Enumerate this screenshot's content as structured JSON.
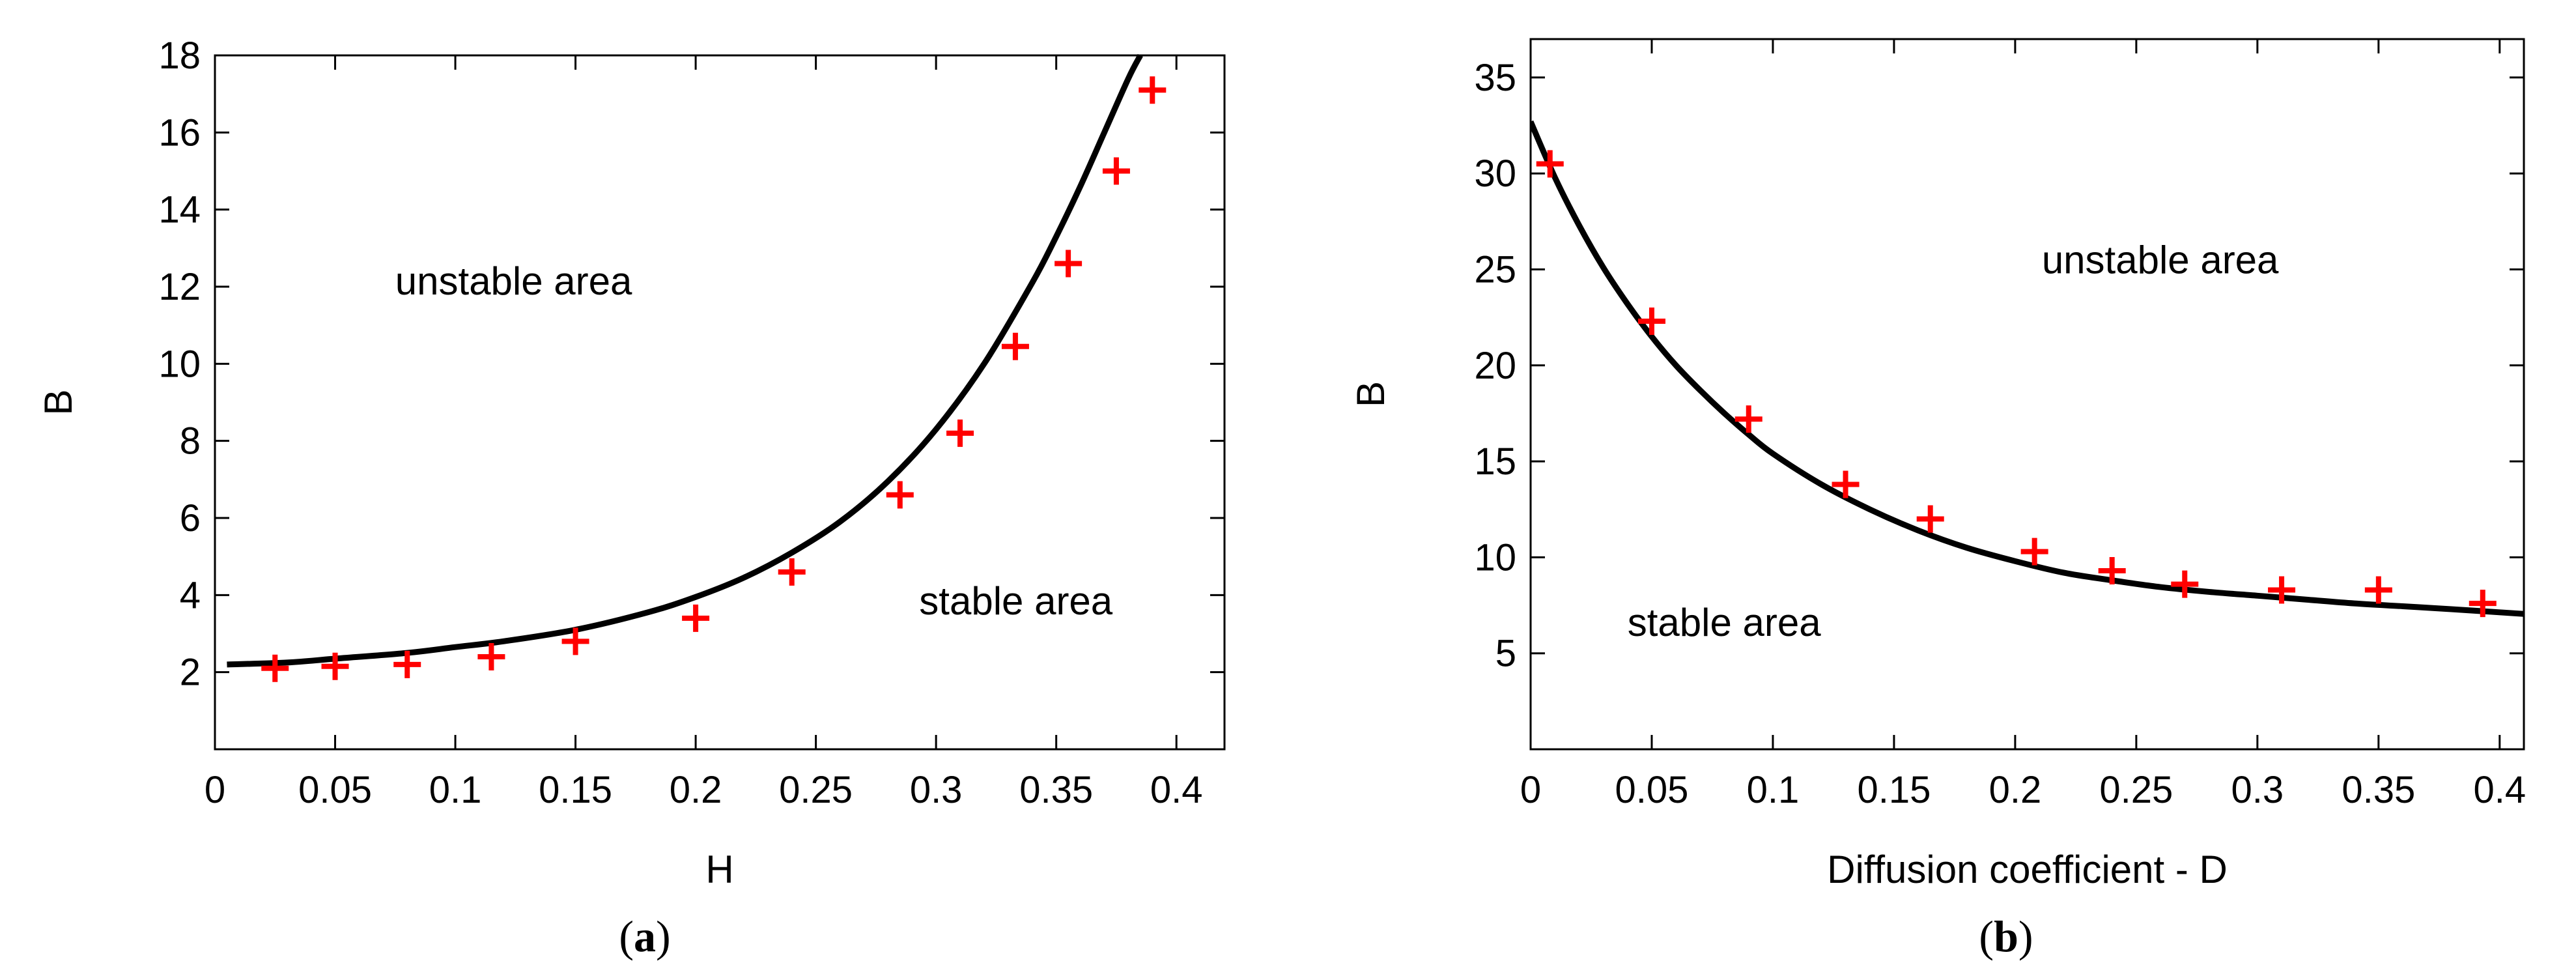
{
  "colors": {
    "curve": "#000000",
    "marker": "#ff0000",
    "axis": "#000000"
  },
  "chart_data": [
    {
      "type": "line",
      "panel": "a",
      "caption_letter": "a",
      "xlabel": "H",
      "ylabel": "B",
      "xlim": [
        0,
        0.42
      ],
      "ylim": [
        0,
        18
      ],
      "xticks": [
        0,
        0.05,
        0.1,
        0.15,
        0.2,
        0.25,
        0.3,
        0.35,
        0.4
      ],
      "xtick_labels": [
        "0",
        "0.05",
        "0.1",
        "0.15",
        "0.2",
        "0.25",
        "0.3",
        "0.35",
        "0.4"
      ],
      "yticks": [
        2,
        4,
        6,
        8,
        10,
        12,
        14,
        16,
        18
      ],
      "ytick_labels": [
        "2",
        "4",
        "6",
        "8",
        "10",
        "12",
        "14",
        "16",
        "18"
      ],
      "grid": false,
      "annotations": [
        {
          "text": "unstable area",
          "x": 0.075,
          "y": 11.8
        },
        {
          "text": "stable area",
          "x": 0.293,
          "y": 3.5
        }
      ],
      "series": [
        {
          "kind": "line",
          "x": [
            0.005,
            0.03,
            0.05,
            0.08,
            0.1,
            0.12,
            0.15,
            0.18,
            0.2,
            0.22,
            0.24,
            0.26,
            0.28,
            0.3,
            0.32,
            0.34,
            0.35,
            0.36,
            0.37,
            0.38,
            0.385
          ],
          "y": [
            2.2,
            2.25,
            2.35,
            2.5,
            2.65,
            2.8,
            3.1,
            3.55,
            3.95,
            4.45,
            5.1,
            5.9,
            6.95,
            8.3,
            10.0,
            12.1,
            13.3,
            14.6,
            16.0,
            17.4,
            18.0
          ]
        },
        {
          "kind": "scatter",
          "marker": "+",
          "x": [
            0.025,
            0.05,
            0.08,
            0.115,
            0.15,
            0.2,
            0.24,
            0.285,
            0.31,
            0.333,
            0.355,
            0.375,
            0.39
          ],
          "y": [
            2.1,
            2.15,
            2.2,
            2.4,
            2.8,
            3.4,
            4.6,
            6.6,
            8.2,
            10.45,
            12.6,
            15.0,
            17.1
          ]
        }
      ]
    },
    {
      "type": "line",
      "panel": "b",
      "caption_letter": "b",
      "xlabel": "Diffusion coefficient - D",
      "ylabel": "B",
      "xlim": [
        0,
        0.41
      ],
      "ylim": [
        0,
        37
      ],
      "xticks": [
        0,
        0.05,
        0.1,
        0.15,
        0.2,
        0.25,
        0.3,
        0.35,
        0.4
      ],
      "xtick_labels": [
        "0",
        "0.05",
        "0.1",
        "0.15",
        "0.2",
        "0.25",
        "0.3",
        "0.35",
        "0.4"
      ],
      "yticks": [
        5,
        10,
        15,
        20,
        25,
        30,
        35
      ],
      "ytick_labels": [
        "5",
        "10",
        "15",
        "20",
        "25",
        "30",
        "35"
      ],
      "grid": false,
      "annotations": [
        {
          "text": "unstable area",
          "x": 0.211,
          "y": 24.8
        },
        {
          "text": "stable area",
          "x": 0.04,
          "y": 5.9
        }
      ],
      "series": [
        {
          "kind": "line",
          "x": [
            0,
            0.01,
            0.02,
            0.03,
            0.04,
            0.05,
            0.06,
            0.07,
            0.08,
            0.09,
            0.1,
            0.12,
            0.14,
            0.16,
            0.18,
            0.2,
            0.22,
            0.24,
            0.26,
            0.28,
            0.3,
            0.32,
            0.34,
            0.36,
            0.38,
            0.41
          ],
          "y": [
            32.7,
            29.8,
            27.3,
            25.1,
            23.2,
            21.5,
            20.0,
            18.7,
            17.5,
            16.4,
            15.4,
            13.8,
            12.5,
            11.4,
            10.5,
            9.8,
            9.2,
            8.8,
            8.45,
            8.2,
            8.0,
            7.8,
            7.6,
            7.45,
            7.3,
            7.05
          ]
        },
        {
          "kind": "scatter",
          "marker": "+",
          "x": [
            0.008,
            0.05,
            0.09,
            0.13,
            0.165,
            0.208,
            0.24,
            0.27,
            0.31,
            0.35,
            0.393
          ],
          "y": [
            30.5,
            22.3,
            17.2,
            13.8,
            12.0,
            10.3,
            9.3,
            8.6,
            8.3,
            8.3,
            7.6
          ]
        }
      ]
    }
  ]
}
